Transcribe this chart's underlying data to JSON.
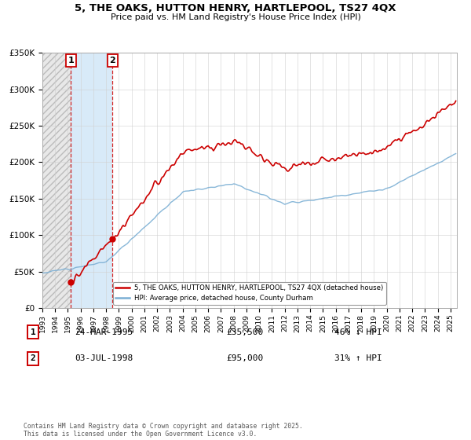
{
  "title": "5, THE OAKS, HUTTON HENRY, HARTLEPOOL, TS27 4QX",
  "subtitle": "Price paid vs. HM Land Registry's House Price Index (HPI)",
  "legend_line1": "5, THE OAKS, HUTTON HENRY, HARTLEPOOL, TS27 4QX (detached house)",
  "legend_line2": "HPI: Average price, detached house, County Durham",
  "transaction1_label": "1",
  "transaction1_date": "24-MAR-1995",
  "transaction1_price": "£35,500",
  "transaction1_hpi": "46% ↓ HPI",
  "transaction2_label": "2",
  "transaction2_date": "03-JUL-1998",
  "transaction2_price": "£95,000",
  "transaction2_hpi": "31% ↑ HPI",
  "footnote": "Contains HM Land Registry data © Crown copyright and database right 2025.\nThis data is licensed under the Open Government Licence v3.0.",
  "property_color": "#cc0000",
  "hpi_color": "#7bafd4",
  "transaction1_x": 1995.23,
  "transaction1_y": 35500,
  "transaction2_x": 1998.5,
  "transaction2_y": 95000,
  "ylim": [
    0,
    350000
  ],
  "xlim": [
    1993.0,
    2025.5
  ]
}
